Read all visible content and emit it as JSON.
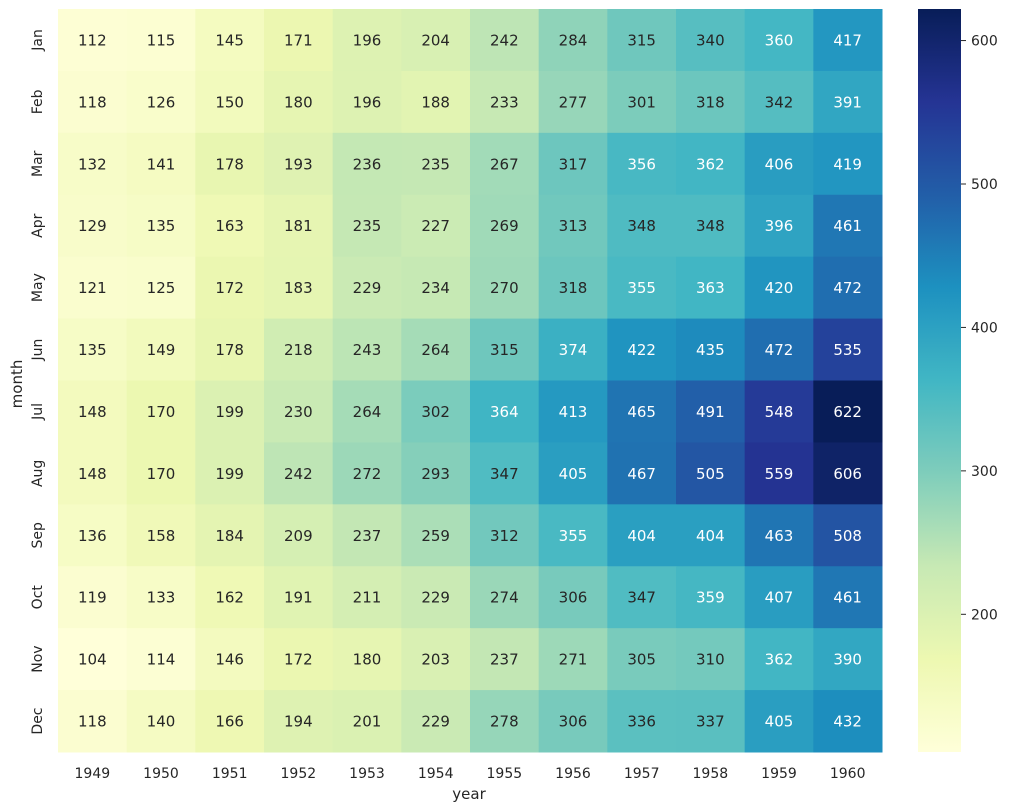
{
  "chart_data": {
    "type": "heatmap",
    "xlabel": "year",
    "ylabel": "month",
    "x": [
      "1949",
      "1950",
      "1951",
      "1952",
      "1953",
      "1954",
      "1955",
      "1956",
      "1957",
      "1958",
      "1959",
      "1960"
    ],
    "y": [
      "Jan",
      "Feb",
      "Mar",
      "Apr",
      "May",
      "Jun",
      "Jul",
      "Aug",
      "Sep",
      "Oct",
      "Nov",
      "Dec"
    ],
    "values": [
      [
        112,
        115,
        145,
        171,
        196,
        204,
        242,
        284,
        315,
        340,
        360,
        417
      ],
      [
        118,
        126,
        150,
        180,
        196,
        188,
        233,
        277,
        301,
        318,
        342,
        391
      ],
      [
        132,
        141,
        178,
        193,
        236,
        235,
        267,
        317,
        356,
        362,
        406,
        419
      ],
      [
        129,
        135,
        163,
        181,
        235,
        227,
        269,
        313,
        348,
        348,
        396,
        461
      ],
      [
        121,
        125,
        172,
        183,
        229,
        234,
        270,
        318,
        355,
        363,
        420,
        472
      ],
      [
        135,
        149,
        178,
        218,
        243,
        264,
        315,
        374,
        422,
        435,
        472,
        535
      ],
      [
        148,
        170,
        199,
        230,
        264,
        302,
        364,
        413,
        465,
        491,
        548,
        622
      ],
      [
        148,
        170,
        199,
        242,
        272,
        293,
        347,
        405,
        467,
        505,
        559,
        606
      ],
      [
        136,
        158,
        184,
        209,
        237,
        259,
        312,
        355,
        404,
        404,
        463,
        508
      ],
      [
        119,
        133,
        162,
        191,
        211,
        229,
        274,
        306,
        347,
        359,
        407,
        461
      ],
      [
        104,
        114,
        146,
        172,
        180,
        203,
        237,
        271,
        305,
        310,
        362,
        390
      ],
      [
        118,
        140,
        166,
        194,
        201,
        229,
        278,
        306,
        336,
        337,
        405,
        432
      ]
    ],
    "colormap": "YlGnBu",
    "vmin": 104,
    "vmax": 622,
    "colorbar_ticks": [
      "200",
      "300",
      "400",
      "500",
      "600"
    ],
    "annotations": true
  }
}
